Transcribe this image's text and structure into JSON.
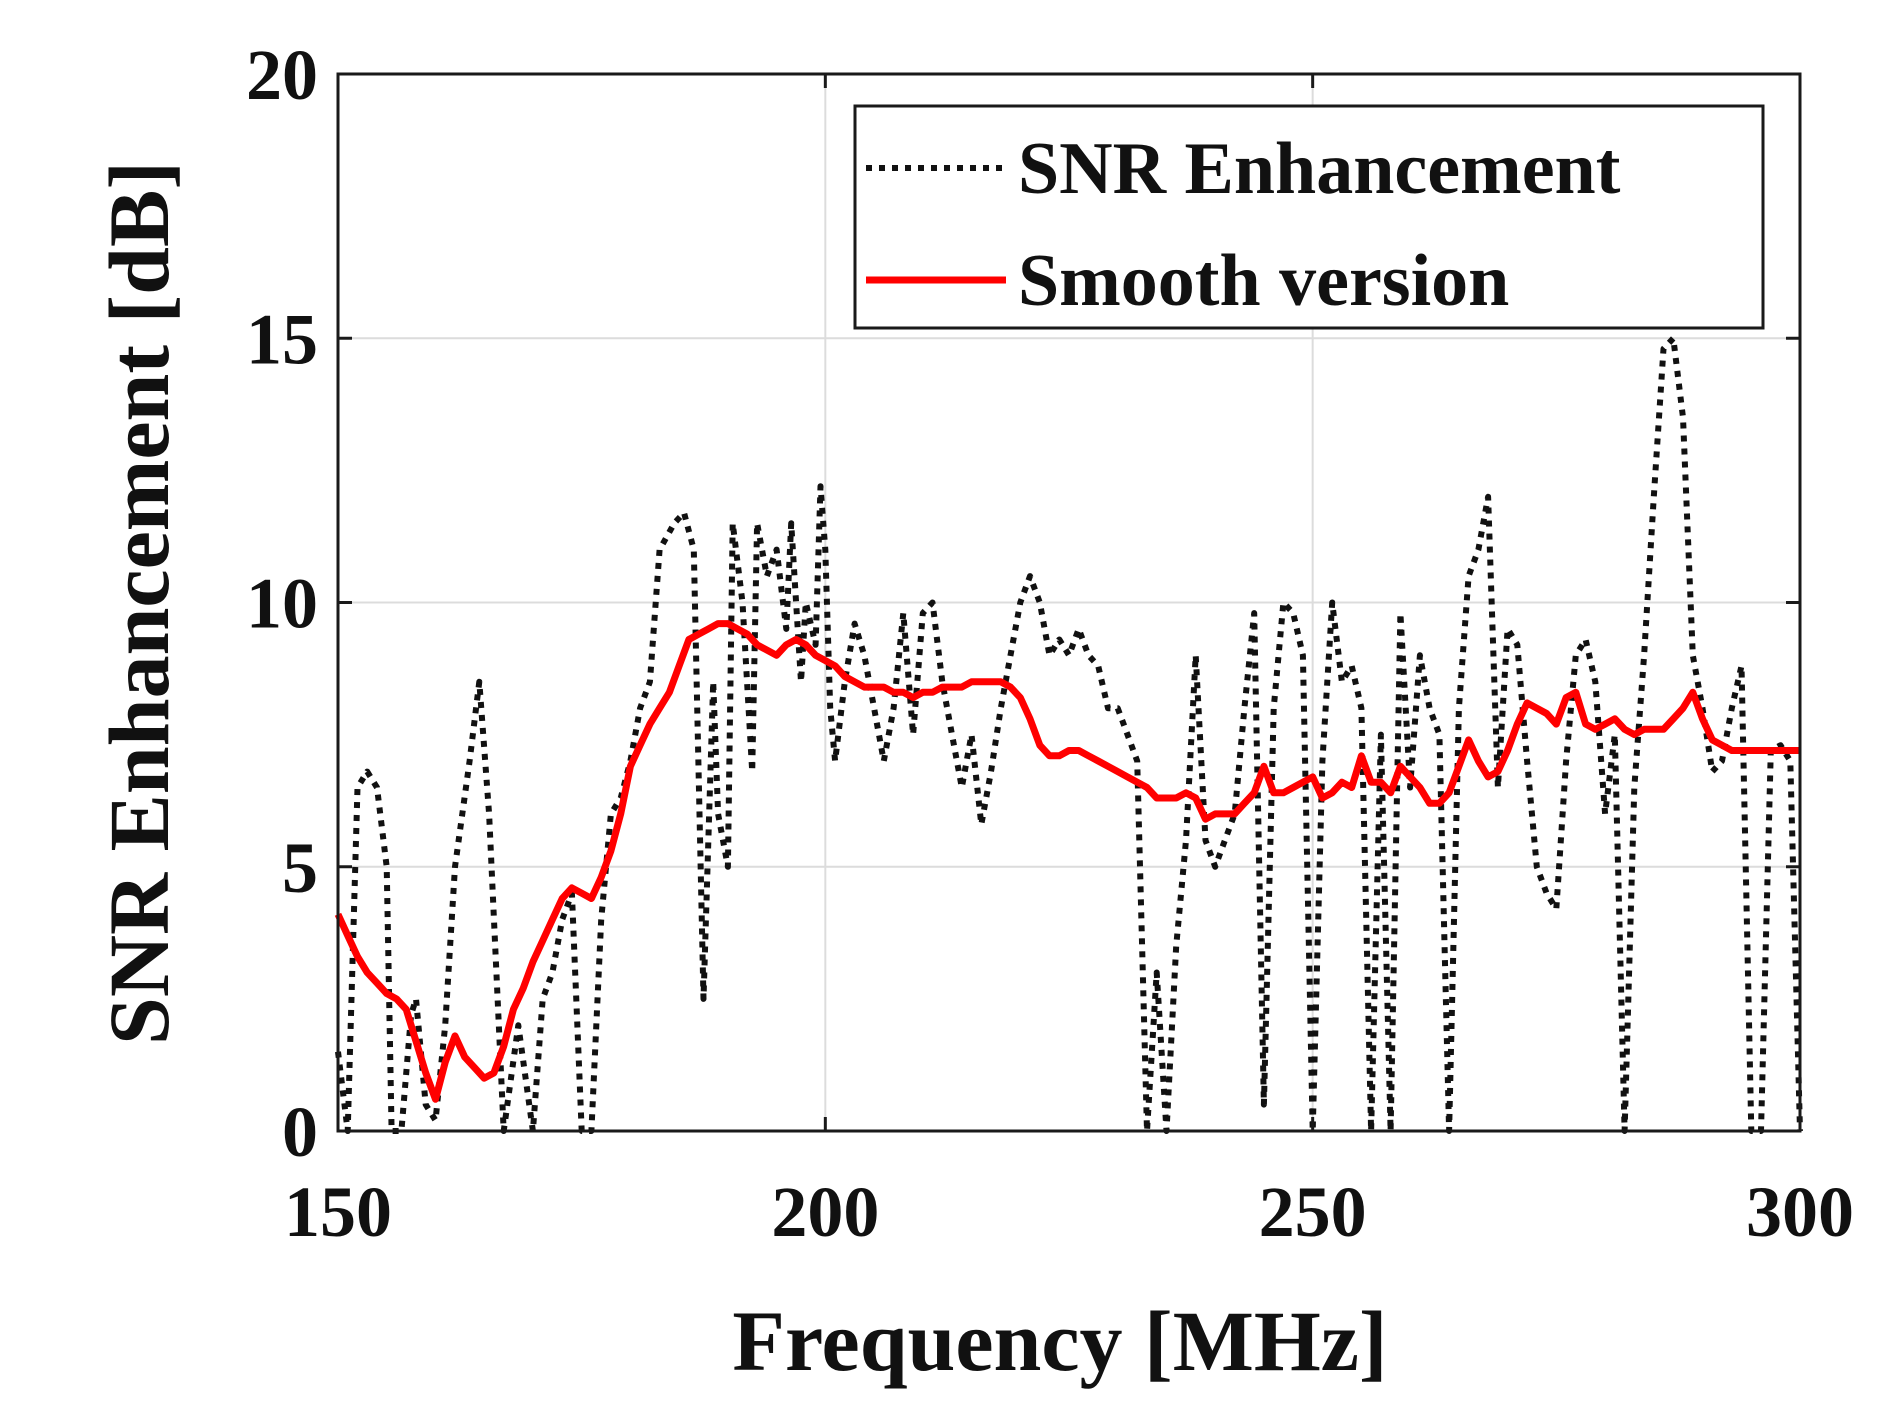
{
  "chart_data": {
    "type": "line",
    "title": "",
    "xlabel": "Frequency [MHz]",
    "ylabel": "SNR Enhancement [dB]",
    "xlim": [
      150,
      300
    ],
    "ylim": [
      0,
      20
    ],
    "xticks": [
      150,
      200,
      250,
      300
    ],
    "yticks": [
      0,
      5,
      10,
      15,
      20
    ],
    "grid": true,
    "legend_position": "top-right",
    "series": [
      {
        "name": "SNR Enhancement",
        "color": "#111111",
        "style": "dotted",
        "points": [
          [
            150.0,
            1.5
          ],
          [
            151.0,
            0.0
          ],
          [
            152.0,
            6.5
          ],
          [
            153.0,
            6.8
          ],
          [
            154.0,
            6.5
          ],
          [
            155.0,
            5.0
          ],
          [
            155.5,
            0.0
          ],
          [
            156.5,
            0.0
          ],
          [
            157.5,
            2.2
          ],
          [
            158.0,
            2.5
          ],
          [
            159.0,
            0.5
          ],
          [
            160.0,
            0.2
          ],
          [
            161.0,
            2.0
          ],
          [
            162.0,
            5.0
          ],
          [
            163.5,
            7.0
          ],
          [
            164.5,
            8.5
          ],
          [
            165.5,
            6.0
          ],
          [
            167.0,
            0.0
          ],
          [
            168.5,
            2.0
          ],
          [
            170.0,
            0.0
          ],
          [
            171.0,
            2.5
          ],
          [
            172.0,
            3.0
          ],
          [
            173.0,
            4.0
          ],
          [
            174.0,
            4.5
          ],
          [
            175.0,
            0.0
          ],
          [
            176.0,
            0.0
          ],
          [
            177.0,
            4.0
          ],
          [
            178.0,
            6.0
          ],
          [
            179.0,
            6.3
          ],
          [
            180.0,
            7.0
          ],
          [
            181.0,
            8.0
          ],
          [
            182.0,
            8.5
          ],
          [
            183.0,
            11.0
          ],
          [
            184.5,
            11.5
          ],
          [
            185.5,
            11.7
          ],
          [
            186.5,
            11.0
          ],
          [
            187.5,
            2.5
          ],
          [
            188.5,
            8.5
          ],
          [
            189.0,
            6.0
          ],
          [
            190.0,
            5.0
          ],
          [
            190.5,
            11.5
          ],
          [
            191.5,
            10.0
          ],
          [
            192.5,
            6.8
          ],
          [
            193.0,
            11.5
          ],
          [
            194.0,
            10.5
          ],
          [
            195.0,
            11.0
          ],
          [
            196.0,
            9.5
          ],
          [
            196.5,
            11.5
          ],
          [
            197.5,
            8.5
          ],
          [
            198.0,
            10.0
          ],
          [
            199.0,
            9.2
          ],
          [
            199.5,
            12.2
          ],
          [
            200.0,
            11.0
          ],
          [
            200.5,
            8.0
          ],
          [
            201.0,
            7.0
          ],
          [
            202.0,
            8.5
          ],
          [
            203.0,
            9.6
          ],
          [
            204.0,
            9.0
          ],
          [
            205.0,
            8.0
          ],
          [
            206.0,
            7.0
          ],
          [
            207.0,
            8.0
          ],
          [
            208.0,
            9.8
          ],
          [
            209.0,
            7.5
          ],
          [
            210.0,
            9.8
          ],
          [
            211.0,
            10.0
          ],
          [
            212.0,
            8.5
          ],
          [
            213.0,
            7.5
          ],
          [
            214.0,
            6.5
          ],
          [
            215.0,
            7.5
          ],
          [
            216.0,
            5.8
          ],
          [
            217.0,
            6.8
          ],
          [
            218.0,
            8.0
          ],
          [
            219.0,
            9.0
          ],
          [
            220.0,
            10.0
          ],
          [
            221.0,
            10.5
          ],
          [
            222.0,
            10.0
          ],
          [
            223.0,
            9.0
          ],
          [
            224.0,
            9.3
          ],
          [
            225.0,
            9.0
          ],
          [
            226.0,
            9.5
          ],
          [
            227.0,
            9.0
          ],
          [
            228.0,
            8.8
          ],
          [
            229.0,
            8.0
          ],
          [
            230.0,
            8.0
          ],
          [
            231.0,
            7.5
          ],
          [
            232.0,
            7.0
          ],
          [
            233.0,
            0.0
          ],
          [
            234.0,
            3.0
          ],
          [
            235.0,
            0.0
          ],
          [
            236.0,
            3.5
          ],
          [
            237.0,
            5.5
          ],
          [
            238.0,
            9.0
          ],
          [
            239.0,
            5.5
          ],
          [
            240.0,
            5.0
          ],
          [
            241.0,
            5.5
          ],
          [
            242.0,
            6.0
          ],
          [
            243.0,
            8.0
          ],
          [
            244.0,
            9.8
          ],
          [
            245.0,
            0.5
          ],
          [
            246.0,
            8.0
          ],
          [
            247.0,
            10.0
          ],
          [
            248.0,
            9.8
          ],
          [
            249.0,
            9.0
          ],
          [
            250.0,
            0.0
          ],
          [
            251.0,
            7.0
          ],
          [
            252.0,
            10.0
          ],
          [
            253.0,
            8.5
          ],
          [
            254.0,
            8.8
          ],
          [
            255.0,
            8.0
          ],
          [
            256.0,
            0.0
          ],
          [
            257.0,
            7.5
          ],
          [
            258.0,
            0.0
          ],
          [
            259.0,
            9.8
          ],
          [
            260.0,
            6.5
          ],
          [
            261.0,
            9.0
          ],
          [
            262.0,
            8.0
          ],
          [
            263.0,
            7.5
          ],
          [
            264.0,
            0.0
          ],
          [
            265.0,
            8.0
          ],
          [
            266.0,
            10.5
          ],
          [
            267.0,
            11.0
          ],
          [
            268.0,
            12.0
          ],
          [
            269.0,
            6.5
          ],
          [
            270.0,
            9.5
          ],
          [
            271.0,
            9.2
          ],
          [
            272.0,
            7.0
          ],
          [
            273.0,
            5.0
          ],
          [
            274.0,
            4.5
          ],
          [
            275.0,
            4.2
          ],
          [
            276.0,
            7.0
          ],
          [
            277.0,
            9.0
          ],
          [
            278.0,
            9.3
          ],
          [
            279.0,
            8.5
          ],
          [
            280.0,
            6.0
          ],
          [
            281.0,
            7.5
          ],
          [
            282.0,
            0.0
          ],
          [
            283.0,
            6.5
          ],
          [
            284.0,
            9.0
          ],
          [
            285.0,
            12.0
          ],
          [
            286.0,
            14.8
          ],
          [
            287.0,
            15.0
          ],
          [
            288.0,
            13.5
          ],
          [
            289.0,
            9.0
          ],
          [
            290.0,
            8.0
          ],
          [
            291.0,
            6.8
          ],
          [
            292.0,
            7.0
          ],
          [
            293.0,
            8.0
          ],
          [
            294.0,
            8.8
          ],
          [
            295.0,
            0.0
          ],
          [
            296.0,
            0.0
          ],
          [
            297.0,
            7.2
          ],
          [
            298.0,
            7.3
          ],
          [
            299.0,
            7.0
          ],
          [
            300.0,
            0.0
          ]
        ]
      },
      {
        "name": "Smooth version",
        "color": "#ff0000",
        "style": "solid",
        "points": [
          [
            150.0,
            4.1
          ],
          [
            151.0,
            3.7
          ],
          [
            152.0,
            3.3
          ],
          [
            153.0,
            3.0
          ],
          [
            154.0,
            2.8
          ],
          [
            155.0,
            2.6
          ],
          [
            156.0,
            2.5
          ],
          [
            157.0,
            2.3
          ],
          [
            158.0,
            1.7
          ],
          [
            159.0,
            1.1
          ],
          [
            160.0,
            0.6
          ],
          [
            161.0,
            1.3
          ],
          [
            162.0,
            1.8
          ],
          [
            163.0,
            1.4
          ],
          [
            164.0,
            1.2
          ],
          [
            165.0,
            1.0
          ],
          [
            166.0,
            1.1
          ],
          [
            167.0,
            1.6
          ],
          [
            168.0,
            2.3
          ],
          [
            169.0,
            2.7
          ],
          [
            170.0,
            3.2
          ],
          [
            171.0,
            3.6
          ],
          [
            172.0,
            4.0
          ],
          [
            173.0,
            4.4
          ],
          [
            174.0,
            4.6
          ],
          [
            175.0,
            4.5
          ],
          [
            176.0,
            4.4
          ],
          [
            177.0,
            4.8
          ],
          [
            178.0,
            5.3
          ],
          [
            179.0,
            6.0
          ],
          [
            180.0,
            6.9
          ],
          [
            181.0,
            7.3
          ],
          [
            182.0,
            7.7
          ],
          [
            183.0,
            8.0
          ],
          [
            184.0,
            8.3
          ],
          [
            185.0,
            8.8
          ],
          [
            186.0,
            9.3
          ],
          [
            187.0,
            9.4
          ],
          [
            188.0,
            9.5
          ],
          [
            189.0,
            9.6
          ],
          [
            190.0,
            9.6
          ],
          [
            191.0,
            9.5
          ],
          [
            192.0,
            9.4
          ],
          [
            193.0,
            9.2
          ],
          [
            194.0,
            9.1
          ],
          [
            195.0,
            9.0
          ],
          [
            196.0,
            9.2
          ],
          [
            197.0,
            9.3
          ],
          [
            198.0,
            9.2
          ],
          [
            199.0,
            9.0
          ],
          [
            200.0,
            8.9
          ],
          [
            201.0,
            8.8
          ],
          [
            202.0,
            8.6
          ],
          [
            203.0,
            8.5
          ],
          [
            204.0,
            8.4
          ],
          [
            205.0,
            8.4
          ],
          [
            206.0,
            8.4
          ],
          [
            207.0,
            8.3
          ],
          [
            208.0,
            8.3
          ],
          [
            209.0,
            8.2
          ],
          [
            210.0,
            8.3
          ],
          [
            211.0,
            8.3
          ],
          [
            212.0,
            8.4
          ],
          [
            213.0,
            8.4
          ],
          [
            214.0,
            8.4
          ],
          [
            215.0,
            8.5
          ],
          [
            216.0,
            8.5
          ],
          [
            217.0,
            8.5
          ],
          [
            218.0,
            8.5
          ],
          [
            219.0,
            8.4
          ],
          [
            220.0,
            8.2
          ],
          [
            221.0,
            7.8
          ],
          [
            222.0,
            7.3
          ],
          [
            223.0,
            7.1
          ],
          [
            224.0,
            7.1
          ],
          [
            225.0,
            7.2
          ],
          [
            226.0,
            7.2
          ],
          [
            227.0,
            7.1
          ],
          [
            228.0,
            7.0
          ],
          [
            229.0,
            6.9
          ],
          [
            230.0,
            6.8
          ],
          [
            231.0,
            6.7
          ],
          [
            232.0,
            6.6
          ],
          [
            233.0,
            6.5
          ],
          [
            234.0,
            6.3
          ],
          [
            235.0,
            6.3
          ],
          [
            236.0,
            6.3
          ],
          [
            237.0,
            6.4
          ],
          [
            238.0,
            6.3
          ],
          [
            239.0,
            5.9
          ],
          [
            240.0,
            6.0
          ],
          [
            241.0,
            6.0
          ],
          [
            242.0,
            6.0
          ],
          [
            243.0,
            6.2
          ],
          [
            244.0,
            6.4
          ],
          [
            245.0,
            6.9
          ],
          [
            246.0,
            6.4
          ],
          [
            247.0,
            6.4
          ],
          [
            248.0,
            6.5
          ],
          [
            249.0,
            6.6
          ],
          [
            250.0,
            6.7
          ],
          [
            251.0,
            6.3
          ],
          [
            252.0,
            6.4
          ],
          [
            253.0,
            6.6
          ],
          [
            254.0,
            6.5
          ],
          [
            255.0,
            7.1
          ],
          [
            256.0,
            6.6
          ],
          [
            257.0,
            6.6
          ],
          [
            258.0,
            6.4
          ],
          [
            259.0,
            6.9
          ],
          [
            260.0,
            6.7
          ],
          [
            261.0,
            6.5
          ],
          [
            262.0,
            6.2
          ],
          [
            263.0,
            6.2
          ],
          [
            264.0,
            6.4
          ],
          [
            265.0,
            6.9
          ],
          [
            266.0,
            7.4
          ],
          [
            267.0,
            7.0
          ],
          [
            268.0,
            6.7
          ],
          [
            269.0,
            6.8
          ],
          [
            270.0,
            7.2
          ],
          [
            271.0,
            7.7
          ],
          [
            272.0,
            8.1
          ],
          [
            273.0,
            8.0
          ],
          [
            274.0,
            7.9
          ],
          [
            275.0,
            7.7
          ],
          [
            276.0,
            8.2
          ],
          [
            277.0,
            8.3
          ],
          [
            278.0,
            7.7
          ],
          [
            279.0,
            7.6
          ],
          [
            280.0,
            7.7
          ],
          [
            281.0,
            7.8
          ],
          [
            282.0,
            7.6
          ],
          [
            283.0,
            7.5
          ],
          [
            284.0,
            7.6
          ],
          [
            285.0,
            7.6
          ],
          [
            286.0,
            7.6
          ],
          [
            287.0,
            7.8
          ],
          [
            288.0,
            8.0
          ],
          [
            289.0,
            8.3
          ],
          [
            290.0,
            7.8
          ],
          [
            291.0,
            7.4
          ],
          [
            292.0,
            7.3
          ],
          [
            293.0,
            7.2
          ],
          [
            294.0,
            7.2
          ],
          [
            295.0,
            7.2
          ],
          [
            296.0,
            7.2
          ],
          [
            297.0,
            7.2
          ],
          [
            298.0,
            7.2
          ],
          [
            299.0,
            7.2
          ],
          [
            300.0,
            7.2
          ]
        ]
      }
    ]
  }
}
